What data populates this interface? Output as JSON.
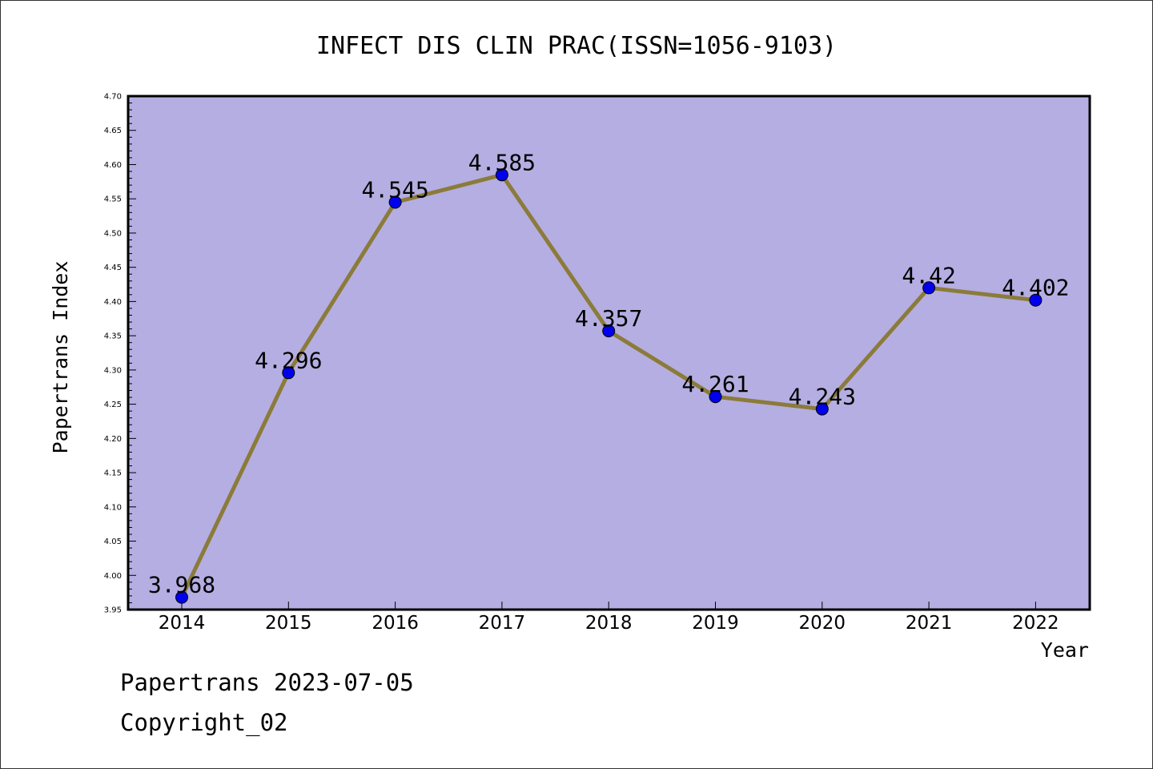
{
  "chart_data": {
    "type": "line",
    "title": "INFECT DIS CLIN PRAC(ISSN=1056-9103)",
    "xlabel": "Year",
    "ylabel": "Papertrans Index",
    "categories": [
      "2014",
      "2015",
      "2016",
      "2017",
      "2018",
      "2019",
      "2020",
      "2021",
      "2022"
    ],
    "values": [
      3.968,
      4.296,
      4.545,
      4.585,
      4.357,
      4.261,
      4.243,
      4.42,
      4.402
    ],
    "data_labels": [
      "3.968",
      "4.296",
      "4.545",
      "4.585",
      "4.357",
      "4.261",
      "4.243",
      "4.42",
      "4.402"
    ],
    "ylim": [
      3.95,
      4.7
    ],
    "yticks": [
      "3.95",
      "4.00",
      "4.05",
      "4.10",
      "4.15",
      "4.20",
      "4.25",
      "4.30",
      "4.35",
      "4.40",
      "4.45",
      "4.50",
      "4.55",
      "4.60",
      "4.65",
      "4.70"
    ],
    "grid": false,
    "legend": "none",
    "colors": {
      "plot_background": "#b5aee2",
      "line": "#8b7b3a",
      "marker": "#0000ee"
    }
  },
  "footer": {
    "line1": "Papertrans 2023-07-05",
    "line2": "Copyright_02"
  }
}
